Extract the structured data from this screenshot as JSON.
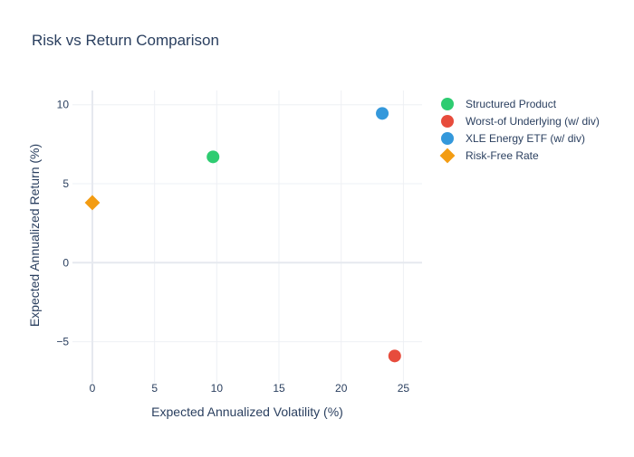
{
  "chart_data": {
    "type": "scatter",
    "title": "Risk vs Return Comparison",
    "xlabel": "Expected Annualized Volatility (%)",
    "ylabel": "Expected Annualized Return (%)",
    "xlim": [
      -1.6,
      26.5
    ],
    "ylim": [
      -7.6,
      10.9
    ],
    "xticks": [
      0,
      5,
      10,
      15,
      20,
      25
    ],
    "yticks": [
      -5,
      0,
      5,
      10
    ],
    "xtick_labels": [
      "0",
      "5",
      "10",
      "15",
      "20",
      "25"
    ],
    "ytick_labels": [
      "−5",
      "0",
      "5",
      "10"
    ],
    "grid": true,
    "legend_position": "top-right outside",
    "series": [
      {
        "name": "Structured Product",
        "marker": "circle",
        "color": "#2ecc71",
        "points": [
          {
            "x": 9.7,
            "y": 6.7
          }
        ]
      },
      {
        "name": "Worst-of Underlying (w/ div)",
        "marker": "circle",
        "color": "#e74c3c",
        "points": [
          {
            "x": 24.3,
            "y": -5.9
          }
        ]
      },
      {
        "name": "XLE Energy ETF (w/ div)",
        "marker": "circle",
        "color": "#3498db",
        "points": [
          {
            "x": 23.3,
            "y": 9.45
          }
        ]
      },
      {
        "name": "Risk-Free Rate",
        "marker": "diamond",
        "color": "#f39c12",
        "points": [
          {
            "x": 0.0,
            "y": 3.8
          }
        ]
      }
    ]
  }
}
